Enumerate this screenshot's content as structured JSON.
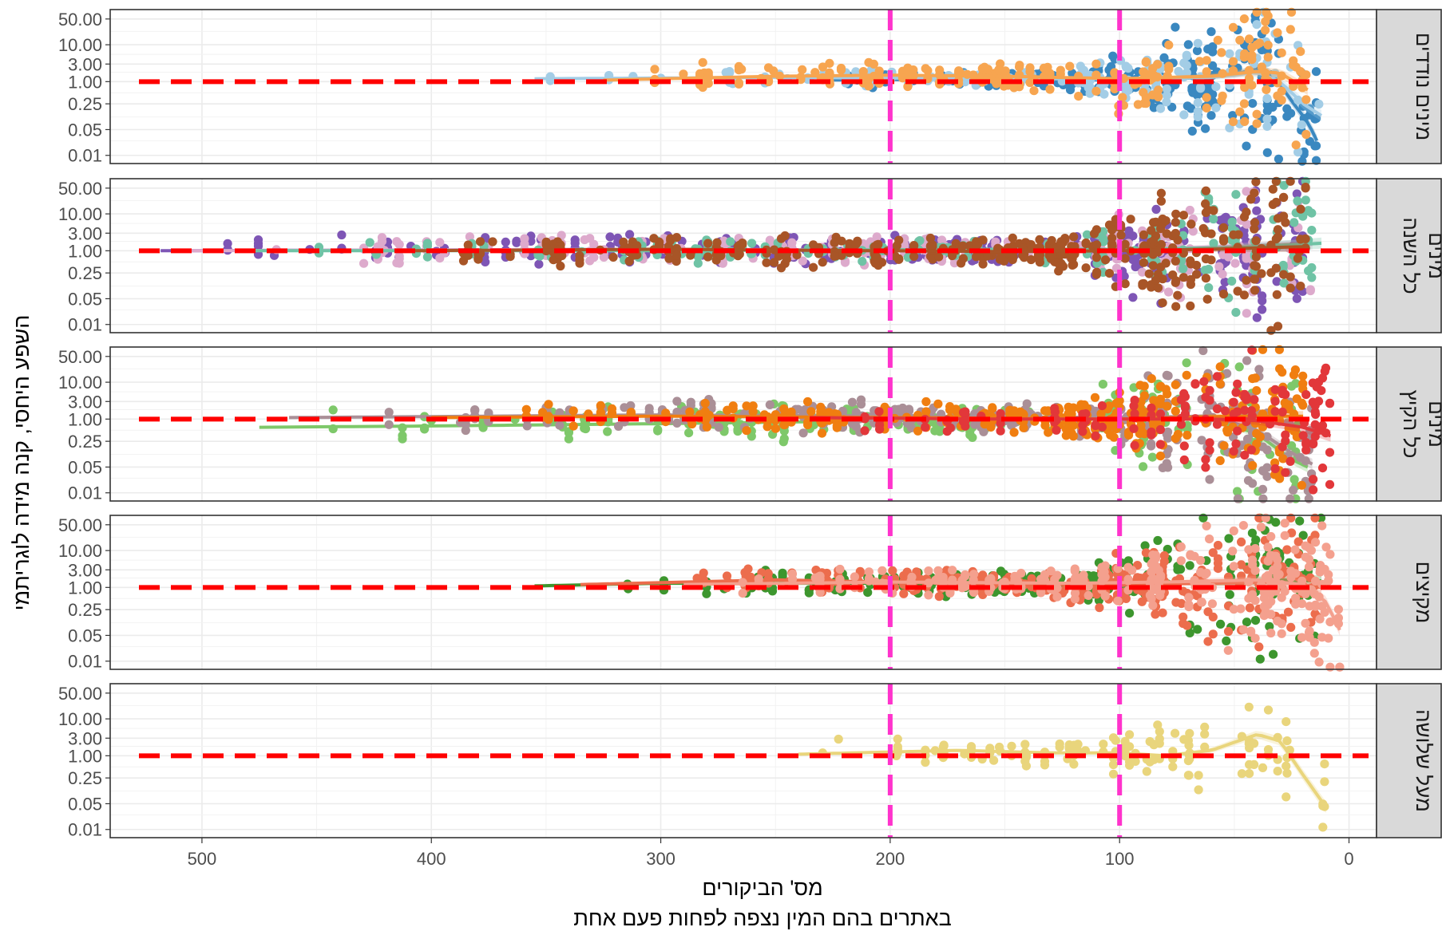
{
  "chart_data": {
    "type": "scatter",
    "title": "",
    "xlabel_line1": "מס' הביקורים",
    "xlabel_line2": "באתרים בהם המין נצפה לפחות פעם אחת",
    "ylabel": "השפע היחסי, קנה מידה לוגריתמי",
    "x_axis": {
      "reversed": true,
      "lim": [
        540,
        -12
      ],
      "ticks": [
        500,
        400,
        300,
        200,
        100,
        0
      ],
      "tick_labels": [
        "500",
        "400",
        "300",
        "200",
        "100",
        "0"
      ]
    },
    "y_axis": {
      "scale": "log",
      "lim": [
        0.006,
        90
      ],
      "ticks": [
        0.01,
        0.05,
        0.25,
        1,
        3,
        10,
        50
      ],
      "tick_labels": [
        "0.01",
        "0.05",
        "0.25",
        "1.00",
        "3.00",
        "10.00",
        "50.00"
      ]
    },
    "reference_lines": {
      "horizontal": {
        "y": 1,
        "color": "#ff0000"
      },
      "vertical": [
        {
          "x": 200,
          "color": "#ff33cc"
        },
        {
          "x": 100,
          "color": "#ff33cc"
        }
      ]
    },
    "grid": true,
    "panels": [
      {
        "strip_label": [
          "מינים נודדים"
        ],
        "series": [
          {
            "color": "#3a88c0",
            "x_range": [
              230,
              14
            ],
            "trend": [
              [
                230,
                1.1
              ],
              [
                150,
                1.2
              ],
              [
                100,
                1.1
              ],
              [
                70,
                1.25
              ],
              [
                50,
                1.6
              ],
              [
                38,
                2.4
              ],
              [
                32,
                1.3
              ],
              [
                25,
                0.3
              ],
              [
                18,
                0.08
              ],
              [
                14,
                0.025
              ]
            ],
            "seed": 11,
            "n": 110,
            "spread_early": 0.15,
            "spread_late": 1.6
          },
          {
            "color": "#a3cde6",
            "x_range": [
              355,
              12
            ],
            "trend": [
              [
                355,
                1.2
              ],
              [
                250,
                1.3
              ],
              [
                150,
                1.2
              ],
              [
                100,
                1.2
              ],
              [
                60,
                1.3
              ],
              [
                40,
                1.8
              ],
              [
                30,
                1.0
              ],
              [
                20,
                0.25
              ],
              [
                12,
                0.12
              ]
            ],
            "seed": 12,
            "n": 90,
            "spread_early": 0.15,
            "spread_late": 1.4
          },
          {
            "color": "#f7a550",
            "x_range": [
              325,
              18
            ],
            "trend": [
              [
                325,
                1.1
              ],
              [
                250,
                1.4
              ],
              [
                200,
                1.5
              ],
              [
                150,
                1.4
              ],
              [
                100,
                1.2
              ],
              [
                60,
                1.4
              ],
              [
                40,
                1.9
              ],
              [
                30,
                1.7
              ],
              [
                18,
                0.6
              ]
            ],
            "seed": 13,
            "n": 110,
            "spread_early": 0.25,
            "spread_late": 1.4
          }
        ]
      },
      {
        "strip_label": [
          "כל השנה",
          "מינים"
        ],
        "series": [
          {
            "color": "#7e55b5",
            "x_range": [
              518,
              20
            ],
            "trend": [
              [
                518,
                1.0
              ],
              [
                300,
                1.1
              ],
              [
                150,
                1.0
              ],
              [
                100,
                1.0
              ],
              [
                60,
                1.2
              ],
              [
                20,
                1.3
              ]
            ],
            "seed": 21,
            "n": 150,
            "spread_early": 0.3,
            "spread_late": 1.7
          },
          {
            "color": "#ddaacc",
            "x_range": [
              510,
              16
            ],
            "trend": [
              [
                510,
                1.0
              ],
              [
                300,
                1.1
              ],
              [
                150,
                1.0
              ],
              [
                100,
                1.1
              ],
              [
                50,
                1.3
              ],
              [
                16,
                1.5
              ]
            ],
            "seed": 22,
            "n": 120,
            "spread_early": 0.3,
            "spread_late": 1.6
          },
          {
            "color": "#6fc3a5",
            "x_range": [
              480,
              12
            ],
            "trend": [
              [
                480,
                1.0
              ],
              [
                300,
                1.0
              ],
              [
                150,
                1.1
              ],
              [
                100,
                1.1
              ],
              [
                50,
                1.2
              ],
              [
                12,
                1.6
              ]
            ],
            "seed": 23,
            "n": 90,
            "spread_early": 0.25,
            "spread_late": 1.5
          },
          {
            "color": "#a85527",
            "x_range": [
              410,
              18
            ],
            "trend": [
              [
                410,
                1.0
              ],
              [
                300,
                1.1
              ],
              [
                150,
                0.95
              ],
              [
                100,
                1.0
              ],
              [
                60,
                1.1
              ],
              [
                18,
                1.3
              ]
            ],
            "seed": 24,
            "n": 190,
            "spread_early": 0.3,
            "spread_late": 1.8
          }
        ]
      },
      {
        "strip_label": [
          "כל הקיץ",
          "מינים"
        ],
        "series": [
          {
            "color": "#7ec86a",
            "x_range": [
              475,
              18
            ],
            "trend": [
              [
                475,
                0.6
              ],
              [
                400,
                0.65
              ],
              [
                300,
                0.75
              ],
              [
                200,
                0.9
              ],
              [
                100,
                1.0
              ],
              [
                60,
                1.0
              ],
              [
                40,
                0.4
              ],
              [
                25,
                0.08
              ],
              [
                18,
                0.05
              ]
            ],
            "seed": 31,
            "n": 90,
            "spread_early": 0.4,
            "spread_late": 1.7
          },
          {
            "color": "#aa8f97",
            "x_range": [
              462,
              16
            ],
            "trend": [
              [
                462,
                1.1
              ],
              [
                300,
                1.3
              ],
              [
                200,
                1.2
              ],
              [
                100,
                1.1
              ],
              [
                60,
                1.2
              ],
              [
                40,
                0.5
              ],
              [
                25,
                0.12
              ],
              [
                16,
                0.06
              ]
            ],
            "seed": 32,
            "n": 150,
            "spread_early": 0.3,
            "spread_late": 1.6
          },
          {
            "color": "#f07e10",
            "x_range": [
              400,
              20
            ],
            "trend": [
              [
                400,
                1.1
              ],
              [
                300,
                1.2
              ],
              [
                200,
                1.1
              ],
              [
                100,
                1.0
              ],
              [
                50,
                1.2
              ],
              [
                20,
                1.2
              ]
            ],
            "seed": 33,
            "n": 150,
            "spread_early": 0.3,
            "spread_late": 1.5
          },
          {
            "color": "#e2373a",
            "x_range": [
              235,
              8
            ],
            "trend": [
              [
                235,
                1.1
              ],
              [
                150,
                1.0
              ],
              [
                100,
                1.0
              ],
              [
                60,
                1.0
              ],
              [
                40,
                0.9
              ],
              [
                20,
                0.6
              ],
              [
                8,
                0.35
              ]
            ],
            "seed": 34,
            "n": 60,
            "spread_early": 0.3,
            "spread_late": 1.4
          }
        ]
      },
      {
        "strip_label": [
          "מקיצים"
        ],
        "series": [
          {
            "color": "#3d962e",
            "x_range": [
              355,
              12
            ],
            "trend": [
              [
                355,
                1.1
              ],
              [
                300,
                1.3
              ],
              [
                200,
                1.3
              ],
              [
                150,
                1.2
              ],
              [
                100,
                1.3
              ],
              [
                60,
                1.3
              ],
              [
                30,
                1.6
              ],
              [
                12,
                1.5
              ]
            ],
            "seed": 41,
            "n": 120,
            "spread_early": 0.25,
            "spread_late": 1.7
          },
          {
            "color": "#ec6d4d",
            "x_range": [
              335,
              12
            ],
            "trend": [
              [
                335,
                1.2
              ],
              [
                250,
                1.6
              ],
              [
                200,
                1.4
              ],
              [
                150,
                1.2
              ],
              [
                100,
                1.2
              ],
              [
                60,
                1.3
              ],
              [
                30,
                1.4
              ],
              [
                12,
                1.0
              ]
            ],
            "seed": 42,
            "n": 140,
            "spread_early": 0.25,
            "spread_late": 1.4
          },
          {
            "color": "#f4a08e",
            "x_range": [
              290,
              4
            ],
            "trend": [
              [
                290,
                1.2
              ],
              [
                200,
                1.4
              ],
              [
                120,
                1.3
              ],
              [
                80,
                1.4
              ],
              [
                40,
                1.6
              ],
              [
                20,
                1.2
              ],
              [
                10,
                0.4
              ],
              [
                4,
                0.07
              ]
            ],
            "seed": 43,
            "n": 120,
            "spread_early": 0.25,
            "spread_late": 1.4
          }
        ]
      },
      {
        "strip_label": [
          "מעל שלושה"
        ],
        "series": [
          {
            "color": "#e9d57c",
            "x_range": [
              240,
              10
            ],
            "trend": [
              [
                240,
                1.1
              ],
              [
                170,
                1.4
              ],
              [
                130,
                1.2
              ],
              [
                100,
                1.2
              ],
              [
                80,
                1.0
              ],
              [
                60,
                1.4
              ],
              [
                40,
                3.8
              ],
              [
                30,
                2.5
              ],
              [
                20,
                0.3
              ],
              [
                10,
                0.04
              ]
            ],
            "seed": 51,
            "n": 60,
            "spread_early": 0.25,
            "spread_late": 1.2
          }
        ]
      }
    ]
  }
}
